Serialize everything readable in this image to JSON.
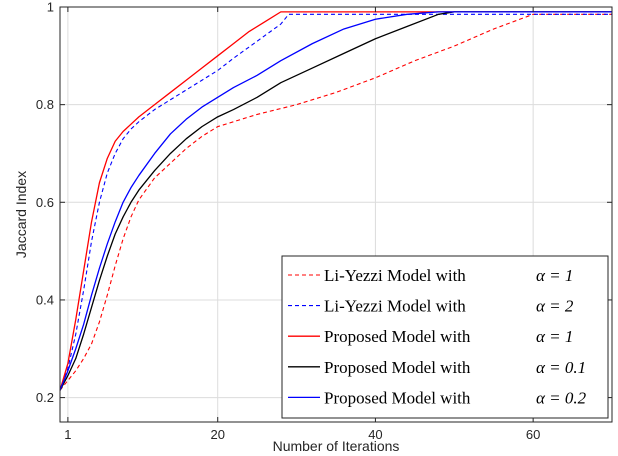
{
  "chart_data": {
    "type": "line",
    "xlabel": "Number of Iterations",
    "ylabel": "Jaccard Index",
    "xlim": [
      0,
      70
    ],
    "ylim": [
      0.15,
      1.0
    ],
    "xticks": [
      1,
      20,
      40,
      60
    ],
    "yticks": [
      0.2,
      0.4,
      0.6,
      0.8,
      1
    ],
    "xtick_labels": [
      "1",
      "20",
      "40",
      "60"
    ],
    "ytick_labels": [
      "0.2",
      "0.4",
      "0.6",
      "0.8",
      "1"
    ],
    "grid": true,
    "legend_position": "bottom-right",
    "series": [
      {
        "name": "Li-Yezzi Model with",
        "alpha_label": "α = 1",
        "color": "#ff0000",
        "dash": "dashed",
        "x": [
          0,
          1,
          2,
          3,
          4,
          5,
          6,
          7,
          8,
          9,
          10,
          12,
          14,
          16,
          18,
          20,
          22,
          25,
          30,
          35,
          40,
          45,
          50,
          55,
          60,
          62,
          70
        ],
        "y": [
          0.215,
          0.235,
          0.255,
          0.28,
          0.31,
          0.355,
          0.41,
          0.47,
          0.525,
          0.57,
          0.605,
          0.65,
          0.68,
          0.71,
          0.735,
          0.755,
          0.765,
          0.78,
          0.8,
          0.825,
          0.855,
          0.89,
          0.92,
          0.955,
          0.985,
          0.985,
          0.985
        ]
      },
      {
        "name": "Li-Yezzi Model with",
        "alpha_label": "α = 2",
        "color": "#0000ff",
        "dash": "dashed",
        "x": [
          0,
          1,
          2,
          3,
          4,
          5,
          6,
          7,
          8,
          9,
          10,
          12,
          14,
          16,
          18,
          20,
          22,
          25,
          28,
          29,
          35,
          40,
          50,
          60,
          70
        ],
        "y": [
          0.215,
          0.26,
          0.33,
          0.42,
          0.52,
          0.6,
          0.66,
          0.7,
          0.73,
          0.75,
          0.765,
          0.79,
          0.81,
          0.83,
          0.85,
          0.87,
          0.895,
          0.93,
          0.965,
          0.985,
          0.985,
          0.985,
          0.985,
          0.985,
          0.985
        ]
      },
      {
        "name": "Proposed Model with",
        "alpha_label": "α = 1",
        "color": "#ff0000",
        "dash": "solid",
        "x": [
          0,
          1,
          2,
          3,
          4,
          5,
          6,
          7,
          8,
          9,
          10,
          12,
          14,
          16,
          18,
          20,
          22,
          24,
          26,
          28,
          30,
          40,
          50,
          60,
          70
        ],
        "y": [
          0.215,
          0.27,
          0.36,
          0.46,
          0.56,
          0.64,
          0.69,
          0.725,
          0.745,
          0.76,
          0.775,
          0.8,
          0.825,
          0.85,
          0.875,
          0.9,
          0.925,
          0.95,
          0.97,
          0.99,
          0.99,
          0.99,
          0.99,
          0.99,
          0.99
        ]
      },
      {
        "name": "Proposed Model with",
        "alpha_label": "α = 0.1",
        "color": "#000000",
        "dash": "solid",
        "x": [
          0,
          1,
          2,
          3,
          4,
          5,
          6,
          7,
          8,
          9,
          10,
          12,
          14,
          16,
          18,
          20,
          22,
          25,
          28,
          32,
          36,
          40,
          44,
          48,
          50,
          60,
          70
        ],
        "y": [
          0.215,
          0.245,
          0.28,
          0.33,
          0.385,
          0.44,
          0.49,
          0.535,
          0.57,
          0.6,
          0.625,
          0.665,
          0.7,
          0.73,
          0.755,
          0.775,
          0.79,
          0.815,
          0.845,
          0.875,
          0.905,
          0.935,
          0.96,
          0.985,
          0.99,
          0.99,
          0.99
        ]
      },
      {
        "name": "Proposed Model with",
        "alpha_label": "α = 0.2",
        "color": "#0000ff",
        "dash": "solid",
        "x": [
          0,
          1,
          2,
          3,
          4,
          5,
          6,
          7,
          8,
          9,
          10,
          12,
          14,
          16,
          18,
          20,
          22,
          25,
          28,
          32,
          36,
          40,
          44,
          48,
          50,
          60,
          70
        ],
        "y": [
          0.215,
          0.255,
          0.3,
          0.35,
          0.41,
          0.465,
          0.515,
          0.56,
          0.6,
          0.63,
          0.655,
          0.7,
          0.74,
          0.77,
          0.795,
          0.815,
          0.835,
          0.86,
          0.89,
          0.925,
          0.955,
          0.975,
          0.985,
          0.99,
          0.99,
          0.99,
          0.99
        ]
      }
    ]
  }
}
